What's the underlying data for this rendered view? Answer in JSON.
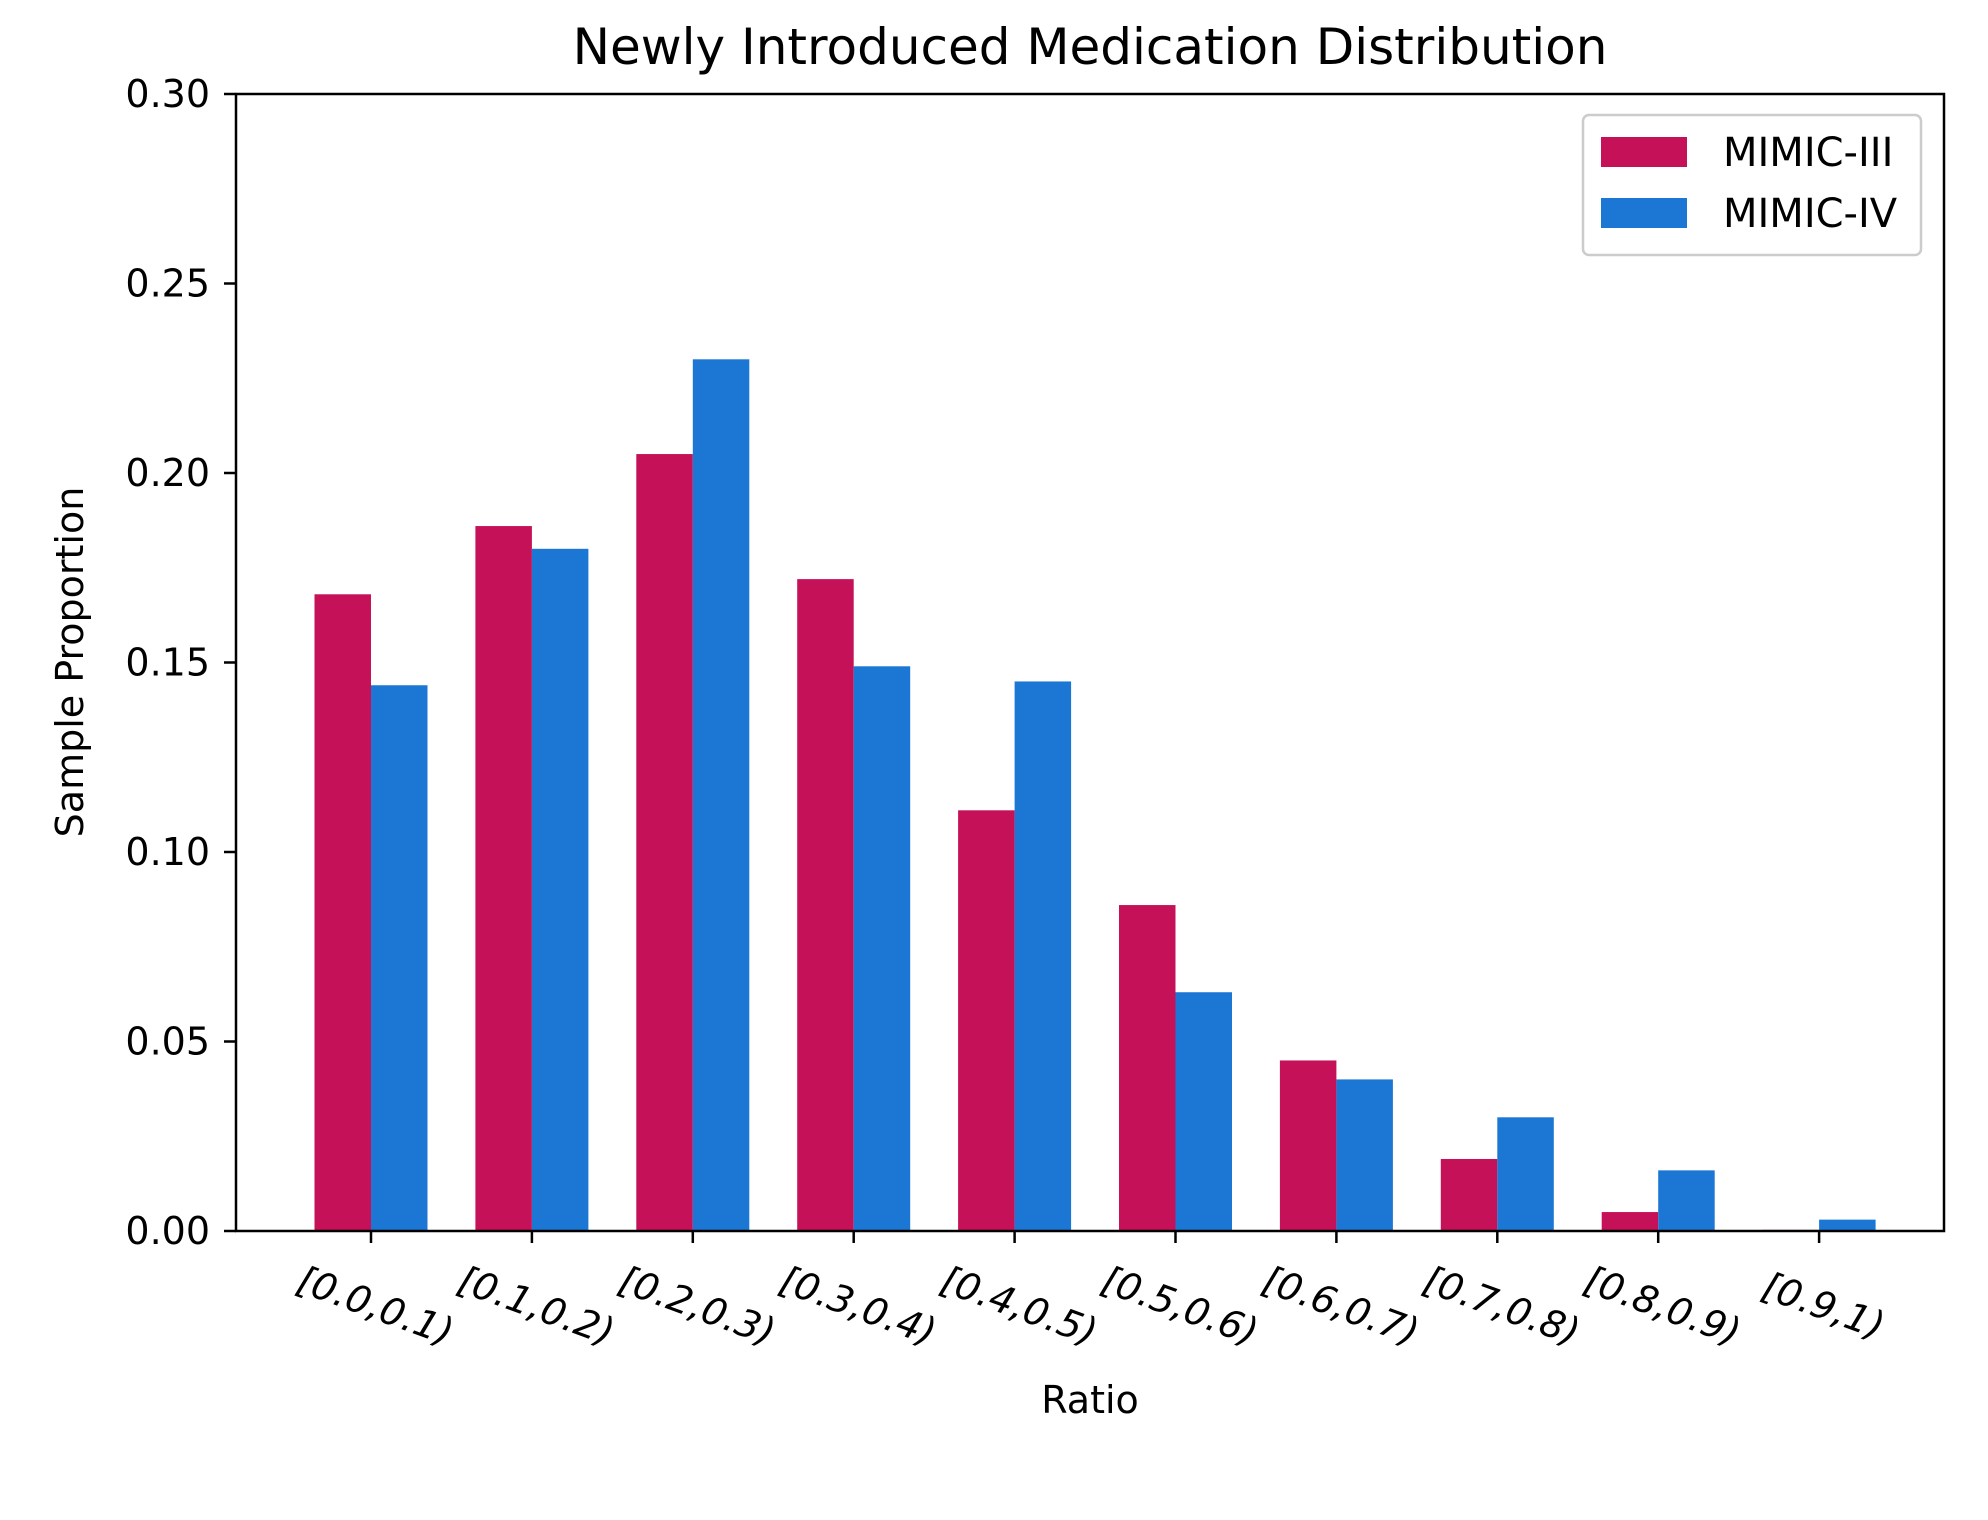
{
  "chart_data": {
    "type": "bar",
    "title": "Newly Introduced Medication Distribution",
    "xlabel": "Ratio",
    "ylabel": "Sample Proportion",
    "categories": [
      "[0.0,0.1)",
      "[0.1,0.2)",
      "[0.2,0.3)",
      "[0.3,0.4)",
      "[0.4,0.5)",
      "[0.5,0.6)",
      "[0.6,0.7)",
      "[0.7,0.8)",
      "[0.8,0.9)",
      "[0.9,1)"
    ],
    "series": [
      {
        "name": "MIMIC-III",
        "color": "#c51158",
        "values": [
          0.168,
          0.186,
          0.205,
          0.172,
          0.111,
          0.086,
          0.045,
          0.019,
          0.005,
          0.0003
        ]
      },
      {
        "name": "MIMIC-IV",
        "color": "#1c77d4",
        "values": [
          0.144,
          0.18,
          0.23,
          0.149,
          0.145,
          0.063,
          0.04,
          0.03,
          0.016,
          0.003
        ]
      }
    ],
    "ylim": [
      0,
      0.3
    ],
    "yticks": [
      "0.00",
      "0.05",
      "0.10",
      "0.15",
      "0.20",
      "0.25",
      "0.30"
    ],
    "grid": false,
    "legend_position": "top-right"
  }
}
